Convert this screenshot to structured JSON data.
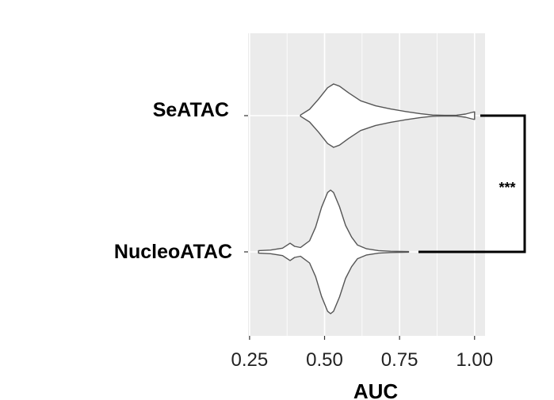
{
  "chart_data": {
    "type": "violin",
    "orientation": "horizontal",
    "xlabel": "AUC",
    "xlim": [
      0.245,
      1.035
    ],
    "xticks": [
      0.25,
      0.5,
      0.75,
      1.0
    ],
    "xtick_labels": [
      "0.25",
      "0.50",
      "0.75",
      "1.00"
    ],
    "categories": [
      "SeATAC",
      "NucleoATAC"
    ],
    "grid": true,
    "background": "#ebebeb",
    "violin_fill": "#ffffff",
    "violin_stroke": "#555555",
    "series": [
      {
        "name": "SeATAC",
        "range": [
          0.42,
          1.0
        ],
        "density": [
          [
            0.42,
            0.02
          ],
          [
            0.45,
            0.2
          ],
          [
            0.48,
            0.52
          ],
          [
            0.51,
            0.88
          ],
          [
            0.53,
            1.0
          ],
          [
            0.55,
            0.93
          ],
          [
            0.58,
            0.72
          ],
          [
            0.62,
            0.47
          ],
          [
            0.67,
            0.31
          ],
          [
            0.72,
            0.21
          ],
          [
            0.77,
            0.13
          ],
          [
            0.82,
            0.06
          ],
          [
            0.86,
            0.02
          ],
          [
            0.9,
            0.01
          ],
          [
            0.94,
            0.015
          ],
          [
            0.97,
            0.05
          ],
          [
            0.99,
            0.1
          ],
          [
            1.0,
            0.12
          ]
        ]
      },
      {
        "name": "NucleoATAC",
        "range": [
          0.28,
          0.78
        ],
        "density": [
          [
            0.28,
            0.02
          ],
          [
            0.32,
            0.03
          ],
          [
            0.36,
            0.06
          ],
          [
            0.385,
            0.14
          ],
          [
            0.4,
            0.09
          ],
          [
            0.42,
            0.07
          ],
          [
            0.45,
            0.18
          ],
          [
            0.47,
            0.4
          ],
          [
            0.49,
            0.72
          ],
          [
            0.51,
            0.96
          ],
          [
            0.52,
            1.0
          ],
          [
            0.53,
            0.96
          ],
          [
            0.55,
            0.73
          ],
          [
            0.57,
            0.43
          ],
          [
            0.59,
            0.24
          ],
          [
            0.61,
            0.11
          ],
          [
            0.64,
            0.05
          ],
          [
            0.68,
            0.02
          ],
          [
            0.72,
            0.01
          ],
          [
            0.78,
            0.005
          ]
        ]
      }
    ],
    "annotations": [
      {
        "text": "***",
        "between": [
          "SeATAC",
          "NucleoATAC"
        ]
      }
    ]
  }
}
